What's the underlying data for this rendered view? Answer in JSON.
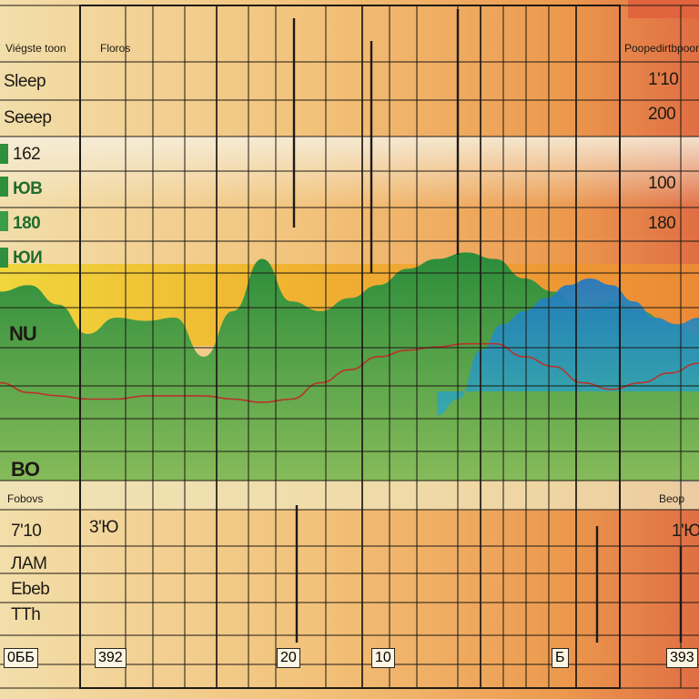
{
  "chart_data": {
    "type": "area",
    "top_left_labels": [
      "Viégste toon",
      "Floros"
    ],
    "top_right_label": "Poopedirtbpoor",
    "left_labels": [
      "Sleep",
      "Seeep",
      "162",
      "ЮВ",
      "180",
      "ЮИ",
      "NU",
      "BO"
    ],
    "right_labels": [
      "1'10",
      "200",
      "100",
      "180"
    ],
    "lower_left_heading": "Fobovs",
    "lower_right_heading": "Beop",
    "lower_left_labels": [
      "7'10",
      "ЛАМ",
      "Ebeb",
      "ТТh"
    ],
    "lower_mid_label": "3'Ю",
    "lower_right_label": "1'Ю",
    "x_tick_labels": [
      "0ББ",
      "392",
      "20",
      "10",
      "Б",
      "393"
    ],
    "series": [
      {
        "values": [
          58,
          60,
          54,
          45,
          50,
          49,
          50,
          38,
          52,
          68,
          55,
          52,
          56,
          60,
          65,
          68,
          70,
          68,
          62,
          58,
          52,
          55,
          52,
          48,
          45
        ]
      },
      {
        "values": [
          20,
          25,
          40,
          48,
          52,
          56,
          60,
          62,
          60,
          55,
          50,
          48,
          50
        ]
      },
      {
        "values": [
          30,
          27,
          26,
          25,
          25,
          26,
          26,
          26,
          25,
          24,
          25,
          30,
          34,
          38,
          40,
          41,
          42,
          42,
          38,
          35,
          30,
          28,
          30,
          33,
          36
        ]
      }
    ],
    "colors": {
      "bg_left": "#f1dca2",
      "bg_right": "#e58a4a",
      "green": "#2f8f3c",
      "blue": "#1e86b8",
      "red": "#b8332a",
      "grid": "#1f1b16"
    }
  }
}
